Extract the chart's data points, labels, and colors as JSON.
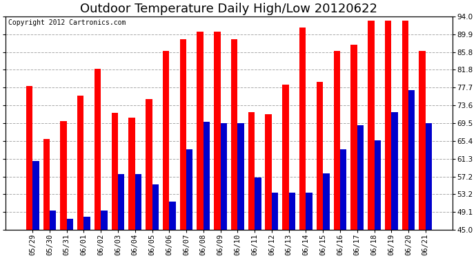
{
  "title": "Outdoor Temperature Daily High/Low 20120622",
  "copyright": "Copyright 2012 Cartronics.com",
  "dates": [
    "05/29",
    "05/30",
    "05/31",
    "06/01",
    "06/02",
    "06/03",
    "06/04",
    "06/05",
    "06/06",
    "06/07",
    "06/08",
    "06/09",
    "06/10",
    "06/11",
    "06/12",
    "06/13",
    "06/14",
    "06/15",
    "06/16",
    "06/17",
    "06/18",
    "06/19",
    "06/20",
    "06/21"
  ],
  "highs": [
    78.0,
    65.8,
    70.0,
    75.8,
    82.0,
    71.8,
    70.8,
    75.0,
    86.0,
    88.8,
    90.5,
    90.5,
    88.8,
    72.0,
    71.5,
    78.3,
    91.5,
    79.0,
    86.0,
    87.5,
    93.0,
    93.0,
    93.0,
    86.0
  ],
  "lows": [
    60.8,
    49.5,
    47.5,
    48.0,
    49.5,
    57.8,
    57.8,
    55.5,
    51.5,
    63.5,
    69.8,
    69.5,
    69.5,
    57.0,
    53.5,
    53.5,
    53.5,
    58.0,
    63.5,
    69.0,
    65.5,
    72.0,
    77.0,
    69.5
  ],
  "high_color": "#ff0000",
  "low_color": "#0000cc",
  "ylim_min": 45.0,
  "ylim_max": 94.0,
  "yticks": [
    45.0,
    49.1,
    53.2,
    57.2,
    61.3,
    65.4,
    69.5,
    73.6,
    77.7,
    81.8,
    85.8,
    89.9,
    94.0
  ],
  "background_color": "#ffffff",
  "grid_color": "#aaaaaa",
  "title_fontsize": 13,
  "copyright_fontsize": 7,
  "tick_fontsize": 7.5,
  "bar_width": 0.38
}
